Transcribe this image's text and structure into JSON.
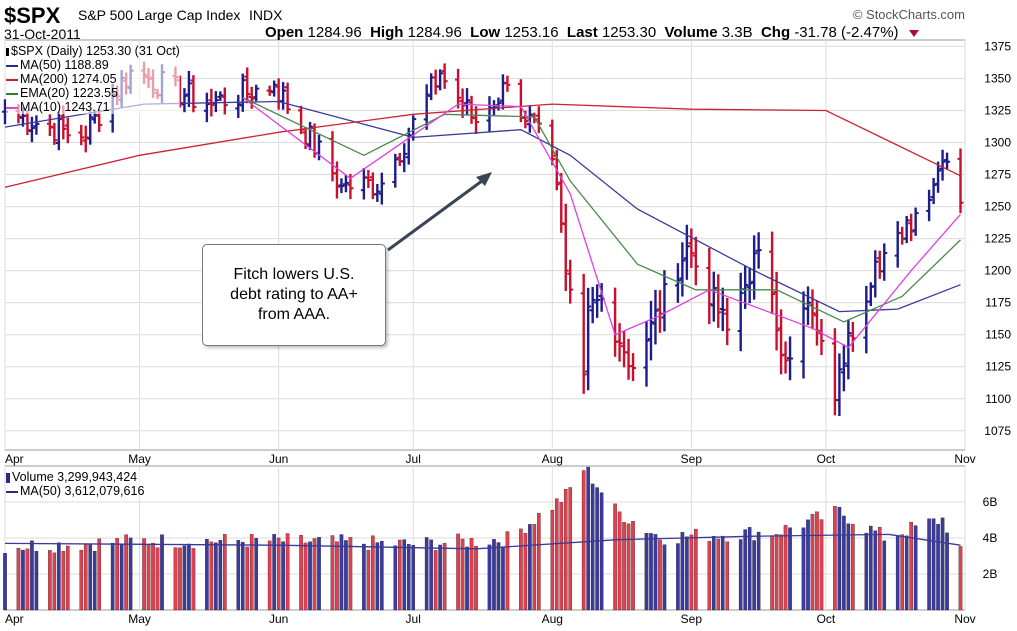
{
  "header": {
    "symbol": "$SPX",
    "name": "S&P 500 Large Cap Index",
    "exchange": "INDX",
    "copyright": "© StockCharts.com",
    "date": "31-Oct-2011",
    "open_label": "Open",
    "open": "1284.96",
    "high_label": "High",
    "high": "1284.96",
    "low_label": "Low",
    "low": "1253.16",
    "last_label": "Last",
    "last": "1253.30",
    "volume_label": "Volume",
    "volume": "3.3B",
    "chg_label": "Chg",
    "chg": "-31.78 (-2.47%)"
  },
  "legend_price": [
    {
      "text": "$SPX (Daily) 1253.30 (31 Oct)",
      "color": "#000000"
    },
    {
      "text": "MA(50) 1188.89",
      "color": "#2a2a8a"
    },
    {
      "text": "MA(200) 1274.05",
      "color": "#cc2233"
    },
    {
      "text": "EMA(20) 1223.55",
      "color": "#2e7d32"
    },
    {
      "text": "MA(10) 1243.71",
      "color": "#e040e0"
    }
  ],
  "legend_volume": [
    {
      "text": "Volume 3,299,943,424",
      "color": "#2a2a8a"
    },
    {
      "text": "MA(50) 3,612,079,616",
      "color": "#2a2a8a"
    }
  ],
  "annotation": "Fitch lowers U.S. debt rating to AA+ from AAA.",
  "colors": {
    "up": "#1c1c8c",
    "down": "#c8102e",
    "vol_up": "#3a3aa0",
    "vol_down": "#e04050",
    "ma50": "#3a3a9a",
    "ma200": "#cc2233",
    "ema20": "#4a8a4a",
    "ma10": "#e040e0"
  },
  "chart_data": [
    {
      "type": "ohlc",
      "title": "$SPX (Daily) 1253.30 (31 Oct)",
      "x_range": [
        "2011-04-01",
        "2011-11-01"
      ],
      "month_ticks": [
        "Apr",
        "May",
        "Jun",
        "Jul",
        "Aug",
        "Sep",
        "Oct",
        "Nov"
      ],
      "ylim": [
        1060,
        1380
      ],
      "y_ticks": [
        1075,
        1100,
        1125,
        1150,
        1175,
        1200,
        1225,
        1250,
        1275,
        1300,
        1325,
        1350,
        1375
      ],
      "grid": true,
      "close_anchors": [
        [
          "2011-04-01",
          1324
        ],
        [
          "2011-04-18",
          1304
        ],
        [
          "2011-04-29",
          1356
        ],
        [
          "2011-05-16",
          1330
        ],
        [
          "2011-05-31",
          1345
        ],
        [
          "2011-06-15",
          1266
        ],
        [
          "2011-06-24",
          1268
        ],
        [
          "2011-07-07",
          1354
        ],
        [
          "2011-07-15",
          1316
        ],
        [
          "2011-07-22",
          1345
        ],
        [
          "2011-08-01",
          1287
        ],
        [
          "2011-08-04",
          1200
        ],
        [
          "2011-08-08",
          1119
        ],
        [
          "2011-08-09",
          1172
        ],
        [
          "2011-08-12",
          1178
        ],
        [
          "2011-08-19",
          1124
        ],
        [
          "2011-08-31",
          1219
        ],
        [
          "2011-09-09",
          1154
        ],
        [
          "2011-09-16",
          1216
        ],
        [
          "2011-09-22",
          1130
        ],
        [
          "2011-09-27",
          1175
        ],
        [
          "2011-10-03",
          1099
        ],
        [
          "2011-10-04",
          1123
        ],
        [
          "2011-10-12",
          1207
        ],
        [
          "2011-10-18",
          1225
        ],
        [
          "2011-10-27",
          1285
        ],
        [
          "2011-10-28",
          1285
        ],
        [
          "2011-10-31",
          1253
        ]
      ],
      "series": [
        {
          "name": "MA(50)",
          "points": [
            [
              "2011-04-01",
              1312
            ],
            [
              "2011-05-02",
              1330
            ],
            [
              "2011-06-01",
              1332
            ],
            [
              "2011-07-01",
              1304
            ],
            [
              "2011-07-25",
              1310
            ],
            [
              "2011-08-05",
              1290
            ],
            [
              "2011-08-20",
              1248
            ],
            [
              "2011-09-15",
              1200
            ],
            [
              "2011-10-04",
              1168
            ],
            [
              "2011-10-17",
              1170
            ],
            [
              "2011-10-31",
              1189
            ]
          ]
        },
        {
          "name": "MA(200)",
          "points": [
            [
              "2011-04-01",
              1265
            ],
            [
              "2011-05-01",
              1290
            ],
            [
              "2011-06-01",
              1308
            ],
            [
              "2011-07-01",
              1322
            ],
            [
              "2011-08-01",
              1330
            ],
            [
              "2011-09-01",
              1326
            ],
            [
              "2011-10-01",
              1325
            ],
            [
              "2011-10-31",
              1274
            ]
          ]
        },
        {
          "name": "EMA(20)",
          "points": [
            [
              "2011-05-24",
              1335
            ],
            [
              "2011-06-20",
              1290
            ],
            [
              "2011-07-08",
              1322
            ],
            [
              "2011-07-28",
              1320
            ],
            [
              "2011-08-05",
              1270
            ],
            [
              "2011-08-20",
              1205
            ],
            [
              "2011-09-02",
              1185
            ],
            [
              "2011-09-20",
              1185
            ],
            [
              "2011-10-05",
              1160
            ],
            [
              "2011-10-18",
              1180
            ],
            [
              "2011-10-31",
              1224
            ]
          ]
        },
        {
          "name": "MA(10)",
          "points": [
            [
              "2011-05-24",
              1335
            ],
            [
              "2011-06-17",
              1272
            ],
            [
              "2011-07-11",
              1330
            ],
            [
              "2011-07-25",
              1328
            ],
            [
              "2011-08-05",
              1260
            ],
            [
              "2011-08-15",
              1150
            ],
            [
              "2011-08-25",
              1165
            ],
            [
              "2011-09-05",
              1185
            ],
            [
              "2011-09-28",
              1155
            ],
            [
              "2011-10-06",
              1140
            ],
            [
              "2011-10-20",
              1200
            ],
            [
              "2011-10-31",
              1244
            ]
          ]
        }
      ]
    },
    {
      "type": "bar",
      "title": "Volume 3,299,943,424",
      "ylim": [
        0,
        8
      ],
      "y_ticks": [
        2,
        4,
        6
      ],
      "y_tick_labels": [
        "2B",
        "4B",
        "6B"
      ],
      "volume_anchors_billions": [
        [
          "2011-04-01",
          3.5
        ],
        [
          "2011-04-15",
          3.6
        ],
        [
          "2011-05-02",
          3.8
        ],
        [
          "2011-06-01",
          3.8
        ],
        [
          "2011-07-01",
          3.6
        ],
        [
          "2011-07-22",
          3.9
        ],
        [
          "2011-07-28",
          5.0
        ],
        [
          "2011-08-04",
          6.3
        ],
        [
          "2011-08-08",
          7.8
        ],
        [
          "2011-08-09",
          7.6
        ],
        [
          "2011-08-15",
          5.5
        ],
        [
          "2011-08-25",
          4.0
        ],
        [
          "2011-09-20",
          4.3
        ],
        [
          "2011-10-04",
          5.4
        ],
        [
          "2011-10-14",
          4.0
        ],
        [
          "2011-10-27",
          5.0
        ],
        [
          "2011-10-31",
          3.3
        ]
      ],
      "series": [
        {
          "name": "MA(50)",
          "points": [
            [
              "2011-04-01",
              3.7
            ],
            [
              "2011-06-01",
              3.6
            ],
            [
              "2011-07-15",
              3.4
            ],
            [
              "2011-08-15",
              3.9
            ],
            [
              "2011-09-15",
              4.1
            ],
            [
              "2011-10-15",
              4.2
            ],
            [
              "2011-10-31",
              3.6
            ]
          ]
        }
      ]
    }
  ]
}
